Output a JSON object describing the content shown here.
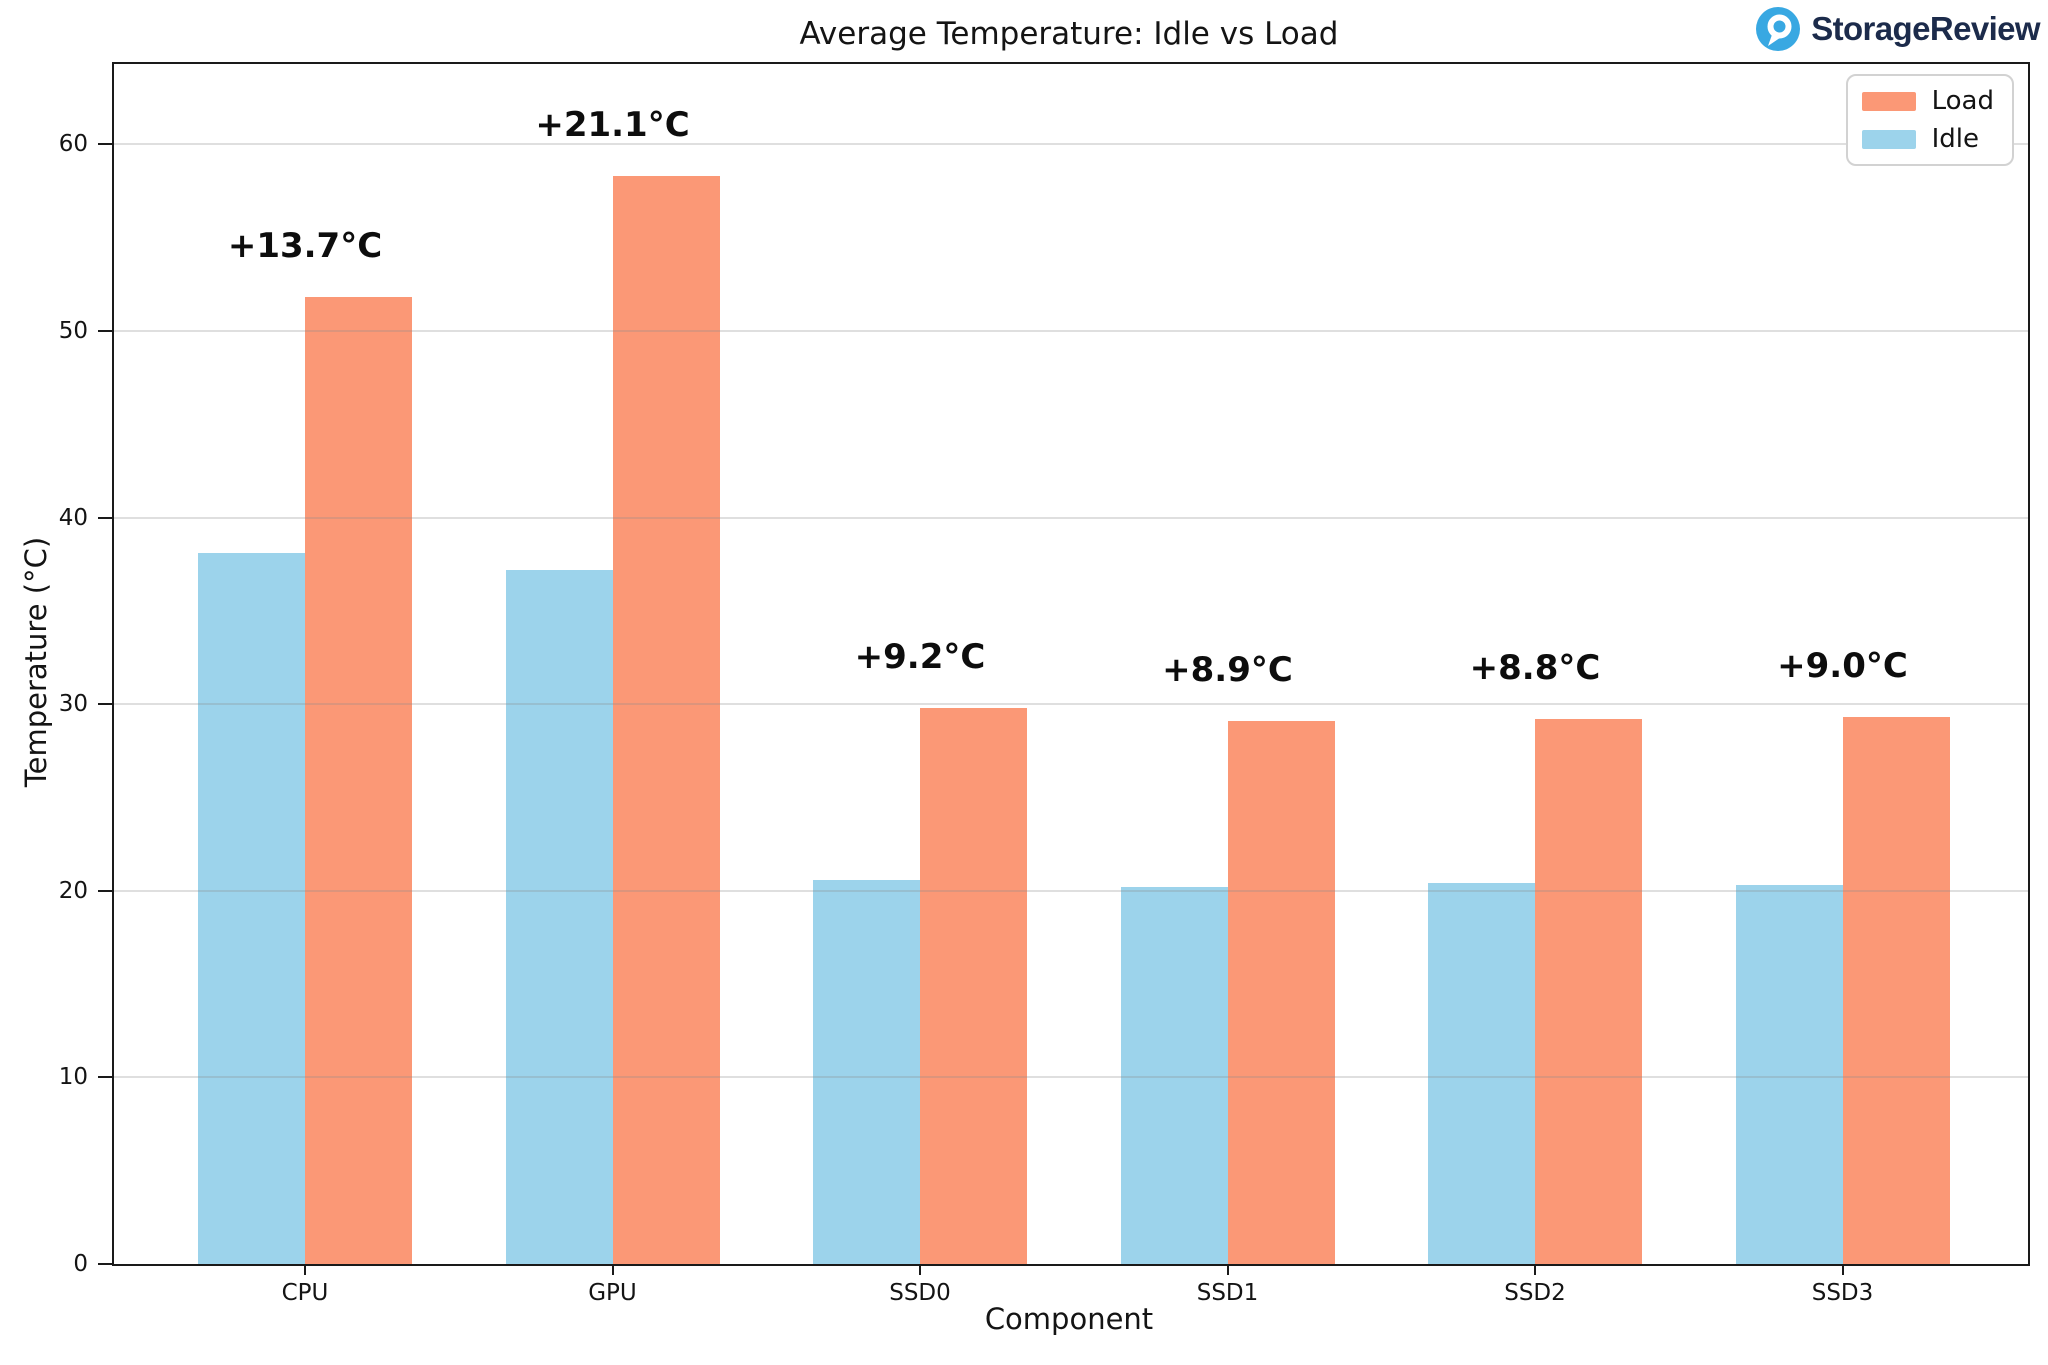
{
  "brand": {
    "name": "StorageReview",
    "icon_color": "#38A8E2",
    "text_color": "#1C2B4B"
  },
  "chart_data": {
    "type": "bar",
    "title": "Average Temperature: Idle vs Load",
    "xlabel": "Component",
    "ylabel": "Temperature (°C)",
    "categories": [
      "CPU",
      "GPU",
      "SSD0",
      "SSD1",
      "SSD2",
      "SSD3"
    ],
    "series": [
      {
        "name": "Idle",
        "color": "#9CD3EB",
        "values": [
          38.1,
          37.2,
          20.6,
          20.2,
          20.4,
          20.3
        ]
      },
      {
        "name": "Load",
        "color": "#FB9876",
        "values": [
          51.8,
          58.3,
          29.8,
          29.1,
          29.2,
          29.3
        ]
      }
    ],
    "annotations": [
      "+13.7°C",
      "+21.1°C",
      "+9.2°C",
      "+8.9°C",
      "+8.8°C",
      "+9.0°C"
    ],
    "yticks": [
      0,
      10,
      20,
      30,
      40,
      50,
      60
    ],
    "ylim": [
      0,
      64.3
    ],
    "grid": true,
    "legend_position": "upper right"
  },
  "legend": {
    "items": [
      {
        "label": "Load",
        "color": "#FB9876"
      },
      {
        "label": "Idle",
        "color": "#9CD3EB"
      }
    ]
  }
}
